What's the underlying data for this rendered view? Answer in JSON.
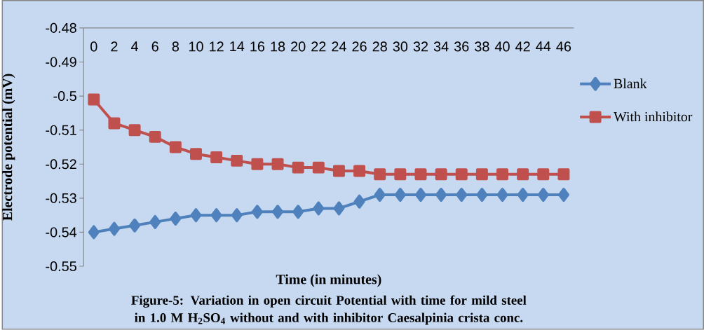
{
  "chart_data": {
    "type": "line",
    "title": "Figure-5: Variation in open circuit Potential with time for mild steel in 1.0 M H$_{2}$SO$_{4}$ without and with inhibitor Caesalpinia crista conc.",
    "xlabel": "Time (in minutes)",
    "ylabel": "Electrode potential (mV)",
    "categories": [
      "0",
      "2",
      "4",
      "6",
      "8",
      "10",
      "12",
      "14",
      "16",
      "18",
      "20",
      "22",
      "24",
      "26",
      "28",
      "30",
      "32",
      "34",
      "36",
      "38",
      "40",
      "42",
      "44",
      "46"
    ],
    "series": [
      {
        "name": "Blank",
        "color": "#4f81bd",
        "marker": "diamond",
        "values": [
          -0.54,
          -0.539,
          -0.538,
          -0.537,
          -0.536,
          -0.535,
          -0.535,
          -0.535,
          -0.534,
          -0.534,
          -0.534,
          -0.533,
          -0.533,
          -0.531,
          -0.529,
          -0.529,
          -0.529,
          -0.529,
          -0.529,
          -0.529,
          -0.529,
          -0.529,
          -0.529,
          -0.529
        ]
      },
      {
        "name": "With inhibitor",
        "color": "#c0504d",
        "marker": "square",
        "values": [
          -0.501,
          -0.508,
          -0.51,
          -0.512,
          -0.515,
          -0.517,
          -0.518,
          -0.519,
          -0.52,
          -0.52,
          -0.521,
          -0.521,
          -0.522,
          -0.522,
          -0.523,
          -0.523,
          -0.523,
          -0.523,
          -0.523,
          -0.523,
          -0.523,
          -0.523,
          -0.523,
          -0.523
        ]
      }
    ],
    "ylim": [
      -0.55,
      -0.48
    ],
    "yticks": [
      -0.48,
      -0.49,
      -0.5,
      -0.51,
      -0.52,
      -0.53,
      -0.54,
      -0.55
    ],
    "grid": false,
    "legend": "right"
  }
}
